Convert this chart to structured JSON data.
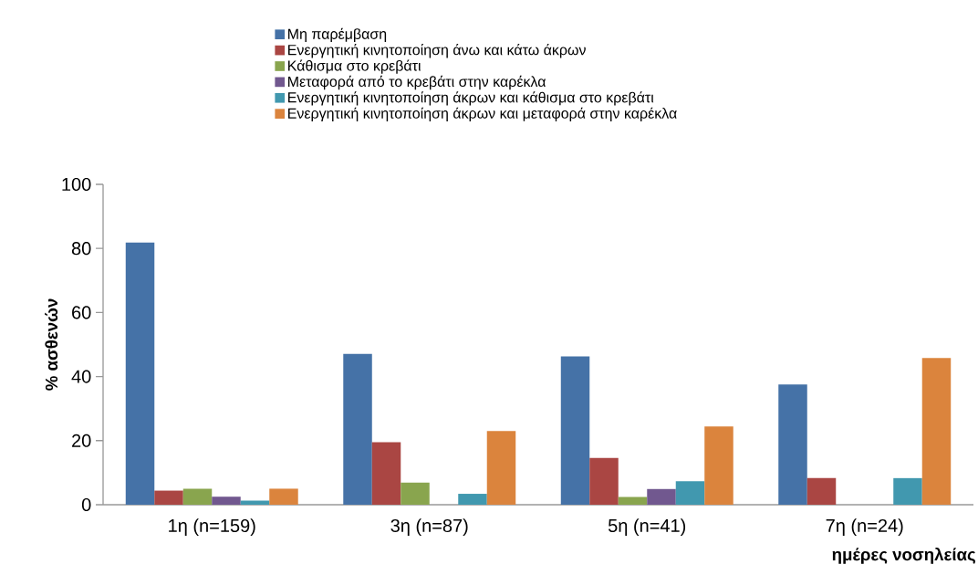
{
  "chart_data": {
    "type": "bar",
    "xlabel": "ημέρες νοσηλείας",
    "ylabel": "% ασθενών",
    "categories": [
      "1η (n=159)",
      "3η (n=87)",
      "5η (n=41)",
      "7η (n=24)"
    ],
    "series": [
      {
        "name": "Μη παρέμβαση",
        "color": "#4572a7",
        "values": [
          81.8,
          47.1,
          46.3,
          37.5
        ]
      },
      {
        "name": "Ενεργητική κινητοποίηση άνω και κάτω άκρων",
        "color": "#aa4643",
        "values": [
          4.4,
          19.5,
          14.6,
          8.3
        ]
      },
      {
        "name": "Κάθισμα στο κρεβάτι",
        "color": "#89a54e",
        "values": [
          5.0,
          6.9,
          2.4,
          0
        ]
      },
      {
        "name": "Μεταφορά από το κρεβάτι στην καρέκλα",
        "color": "#71588f",
        "values": [
          2.5,
          0,
          4.9,
          0
        ]
      },
      {
        "name": "Ενεργητική κινητοποίηση άκρων και κάθισμα στο κρεβάτι",
        "color": "#4198af",
        "values": [
          1.3,
          3.4,
          7.3,
          8.3
        ]
      },
      {
        "name": "Ενεργητική κινητοποίηση άκρων και μεταφορά στην καρέκλα",
        "color": "#db843d",
        "values": [
          5.0,
          23.0,
          24.4,
          45.8
        ]
      }
    ],
    "ylim": [
      0,
      100
    ],
    "yticks": [
      0,
      20,
      40,
      60,
      80,
      100
    ],
    "grid": false,
    "legend": "top"
  }
}
